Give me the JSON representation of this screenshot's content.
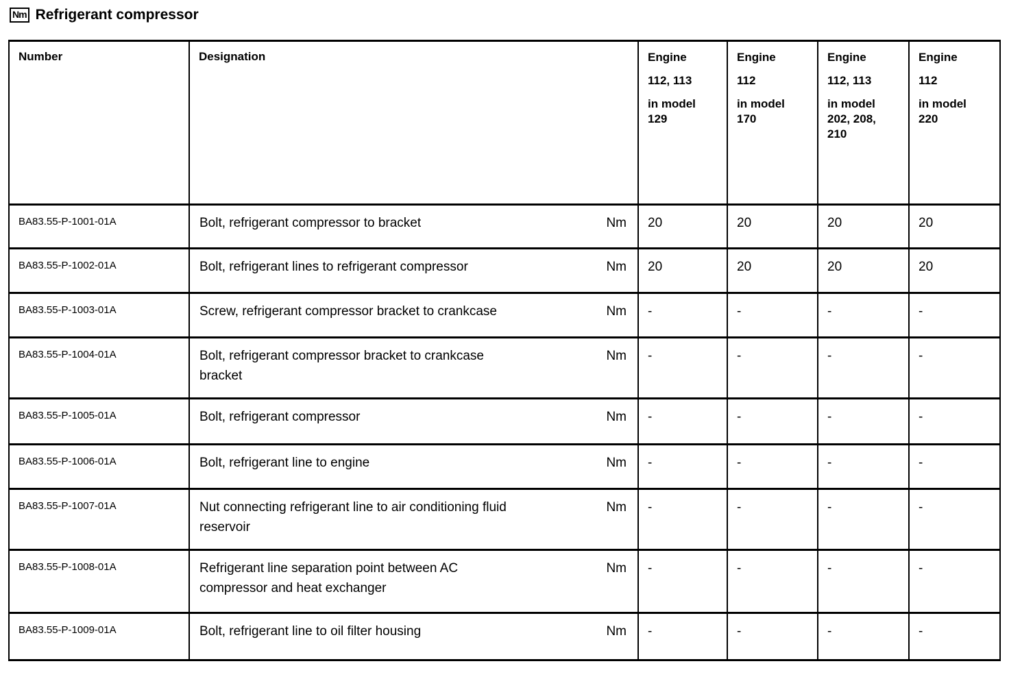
{
  "page": {
    "title": "Refrigerant compressor",
    "title_badge": "Nm"
  },
  "table": {
    "headers": {
      "number": "Number",
      "designation": "Designation",
      "engines": [
        {
          "paragraphs": [
            [
              "Engine"
            ],
            [
              "112, 113"
            ],
            [
              "in model",
              "129"
            ]
          ]
        },
        {
          "paragraphs": [
            [
              "Engine"
            ],
            [
              "112"
            ],
            [
              "in model",
              "170"
            ]
          ]
        },
        {
          "paragraphs": [
            [
              "Engine"
            ],
            [
              "112, 113"
            ],
            [
              "in model",
              "202, 208,",
              "210"
            ]
          ]
        },
        {
          "paragraphs": [
            [
              "Engine"
            ],
            [
              "112"
            ],
            [
              "in model",
              "220"
            ]
          ]
        }
      ]
    },
    "rows": [
      {
        "number": "BA83.55-P-1001-01A",
        "designation_lines": [
          "Bolt, refrigerant compressor to bracket"
        ],
        "unit": "Nm",
        "values": [
          "20",
          "20",
          "20",
          "20"
        ]
      },
      {
        "number": "BA83.55-P-1002-01A",
        "designation_lines": [
          "Bolt, refrigerant lines to refrigerant compressor"
        ],
        "unit": "Nm",
        "values": [
          "20",
          "20",
          "20",
          "20"
        ]
      },
      {
        "number": "BA83.55-P-1003-01A",
        "designation_lines": [
          "Screw, refrigerant compressor bracket to crankcase"
        ],
        "unit": "Nm",
        "values": [
          "-",
          "-",
          "-",
          "-"
        ]
      },
      {
        "number": "BA83.55-P-1004-01A",
        "designation_lines": [
          "Bolt, refrigerant compressor bracket to crankcase",
          "bracket"
        ],
        "unit": "Nm",
        "values": [
          "-",
          "-",
          "-",
          "-"
        ]
      },
      {
        "number": "BA83.55-P-1005-01A",
        "designation_lines": [
          "Bolt, refrigerant compressor"
        ],
        "unit": "Nm",
        "values": [
          "-",
          "-",
          "-",
          "-"
        ]
      },
      {
        "number": "BA83.55-P-1006-01A",
        "designation_lines": [
          "Bolt, refrigerant line to engine"
        ],
        "unit": "Nm",
        "values": [
          "-",
          "-",
          "-",
          "-"
        ]
      },
      {
        "number": "BA83.55-P-1007-01A",
        "designation_lines": [
          "Nut connecting refrigerant line to air conditioning fluid",
          "reservoir"
        ],
        "unit": "Nm",
        "values": [
          "-",
          "-",
          "-",
          "-"
        ]
      },
      {
        "number": "BA83.55-P-1008-01A",
        "designation_lines": [
          "Refrigerant line separation point between AC",
          "compressor and heat exchanger"
        ],
        "unit": "Nm",
        "values": [
          "-",
          "-",
          "-",
          "-"
        ]
      },
      {
        "number": "BA83.55-P-1009-01A",
        "designation_lines": [
          "Bolt, refrigerant line to oil filter housing"
        ],
        "unit": "Nm",
        "values": [
          "-",
          "-",
          "-",
          "-"
        ]
      }
    ]
  }
}
